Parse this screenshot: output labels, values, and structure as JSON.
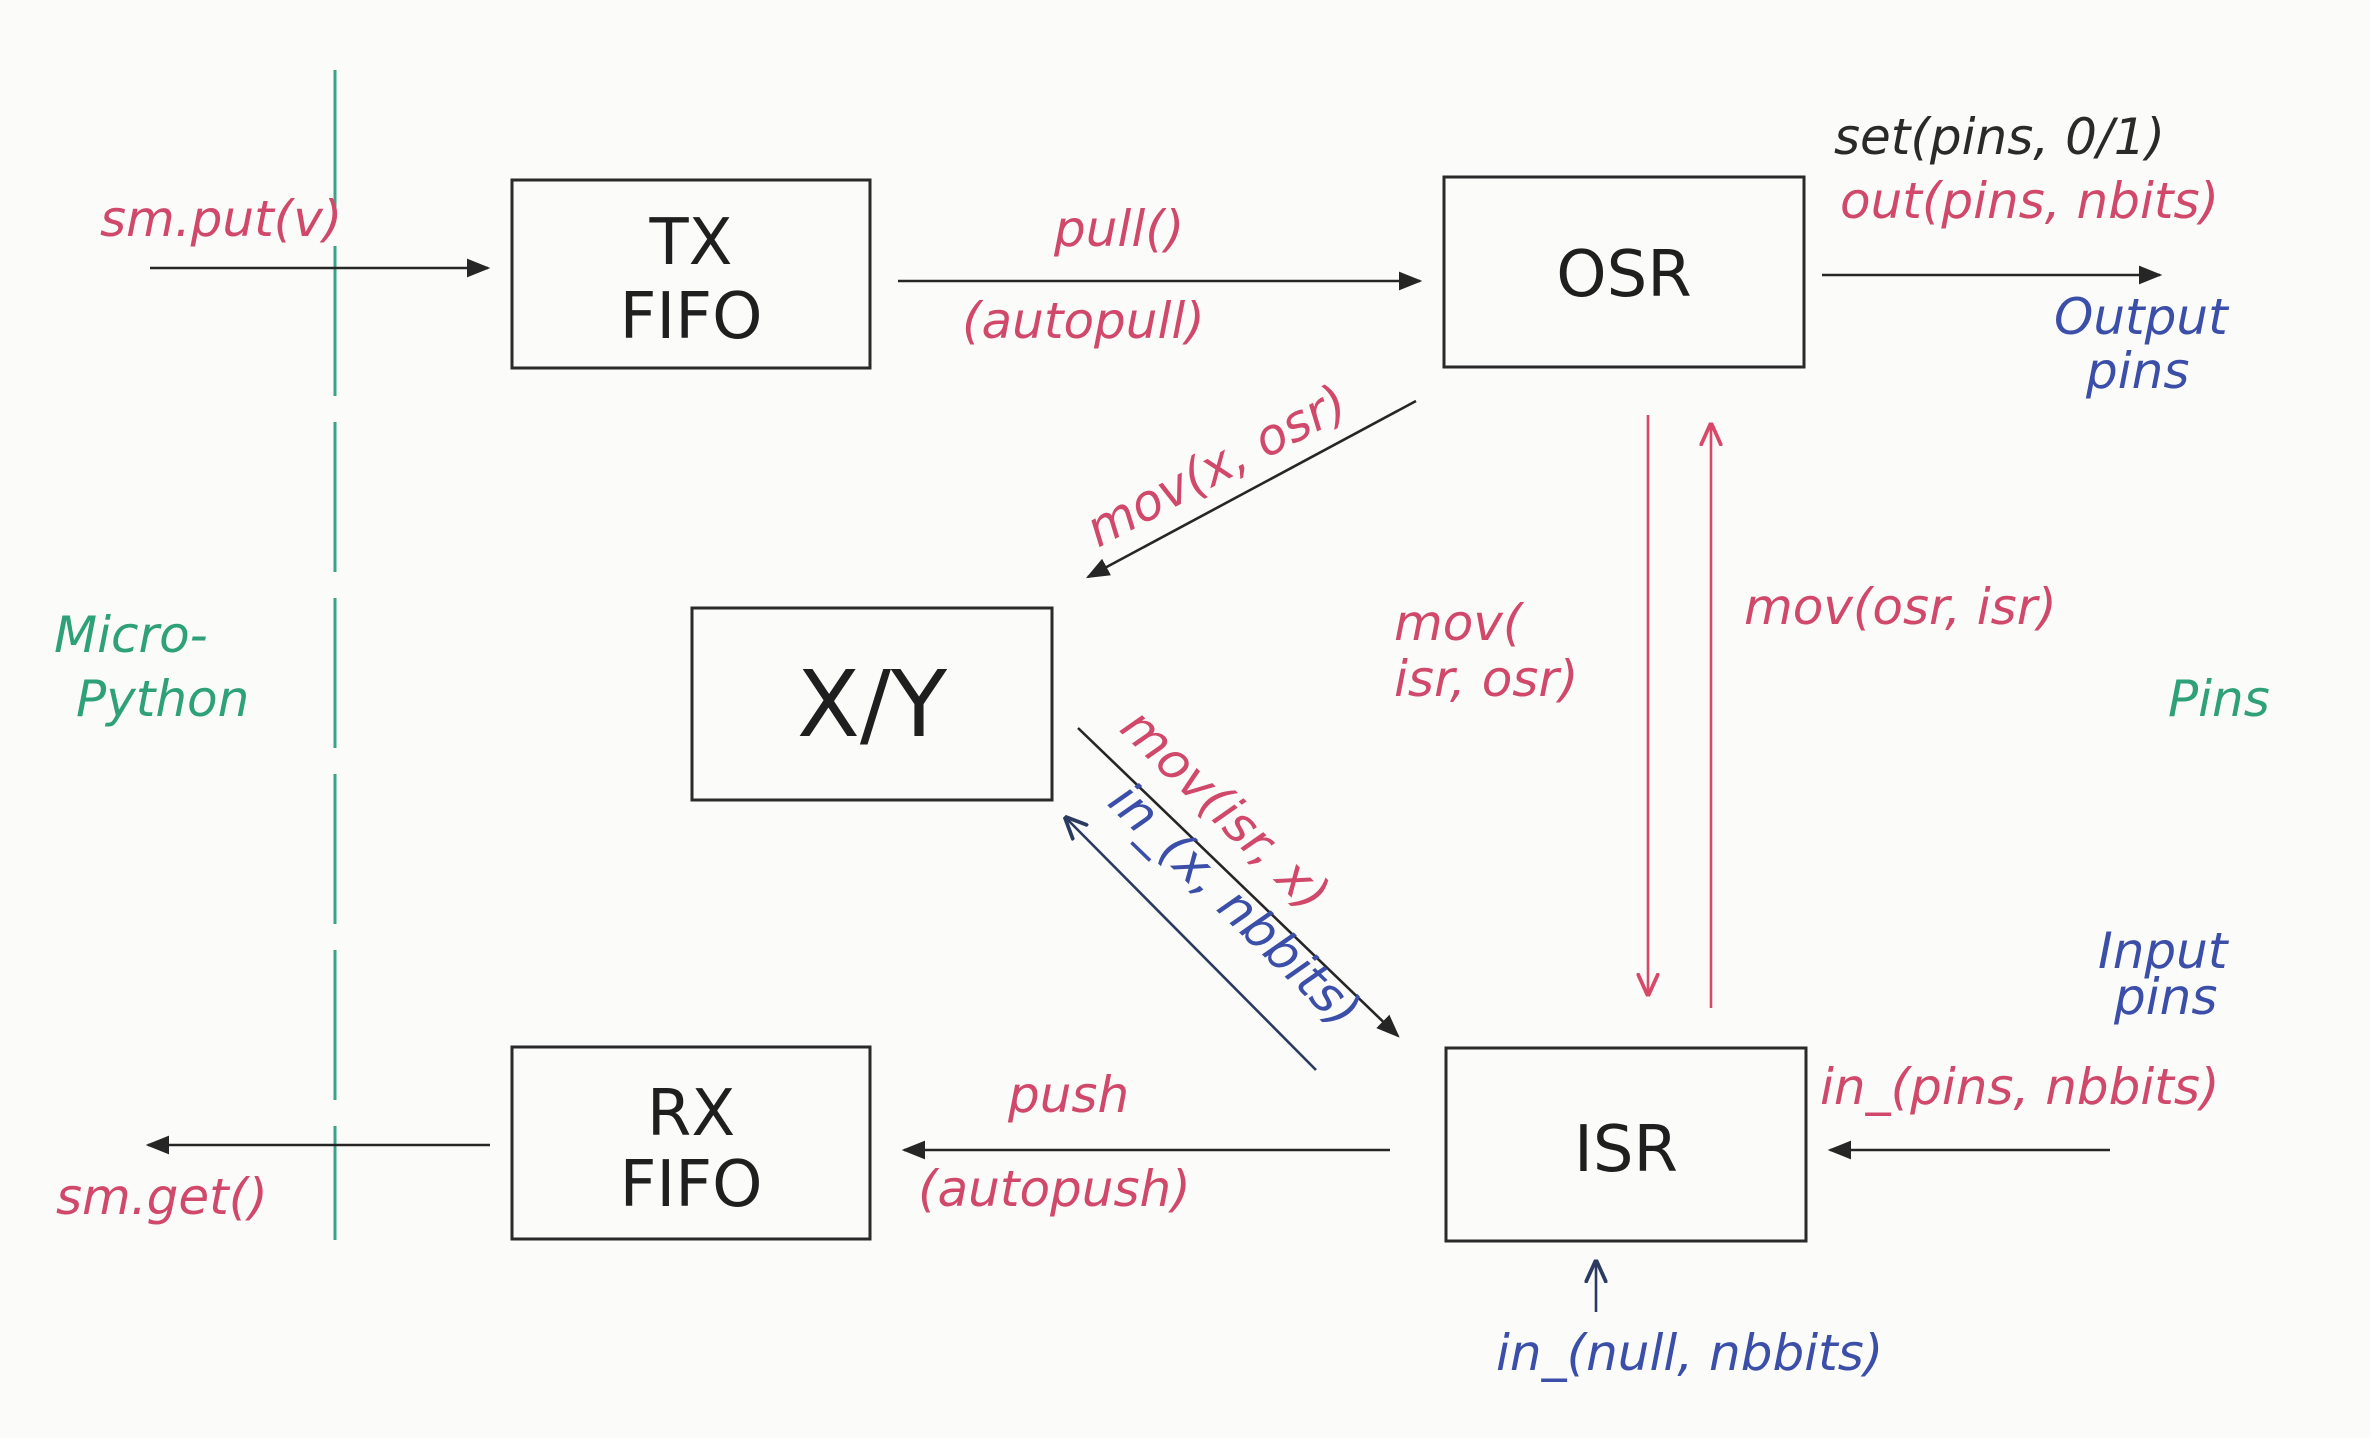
{
  "blocks": {
    "tx_fifo": [
      "TX",
      "FIFO"
    ],
    "osr": "OSR",
    "xy": "X/Y",
    "rx_fifo": [
      "RX",
      "FIFO"
    ],
    "isr": "ISR"
  },
  "labels": {
    "sm_put": "sm.put(v)",
    "pull": "pull()",
    "autopull": "(autopull)",
    "set_pins": "set(pins, 0/1)",
    "out_pins": "out(pins, nbits)",
    "output_pins": [
      "Output",
      "pins"
    ],
    "mov_x_osr": "mov(x, osr)",
    "mov_isr_osr": [
      "mov(",
      "isr, osr)"
    ],
    "mov_osr_isr": "mov(osr, isr)",
    "micropython": [
      "Micro-",
      "Python"
    ],
    "pins_region": "Pins",
    "mov_isr_x": "mov(isr, x)",
    "in_x_nbits": "in_(x, nbbits)",
    "input_pins": [
      "Input",
      "pins"
    ],
    "in_pins_nbits": "in_(pins, nbbits)",
    "push": "push",
    "autopush": "(autopush)",
    "sm_get": "sm.get()",
    "in_null_nbits": "in_(null, nbbits)"
  },
  "colors": {
    "ink_black": "#2a2a2a",
    "ink_red": "#d0486a",
    "ink_blue": "#3c4fa8",
    "ink_green": "#2ea07a"
  }
}
